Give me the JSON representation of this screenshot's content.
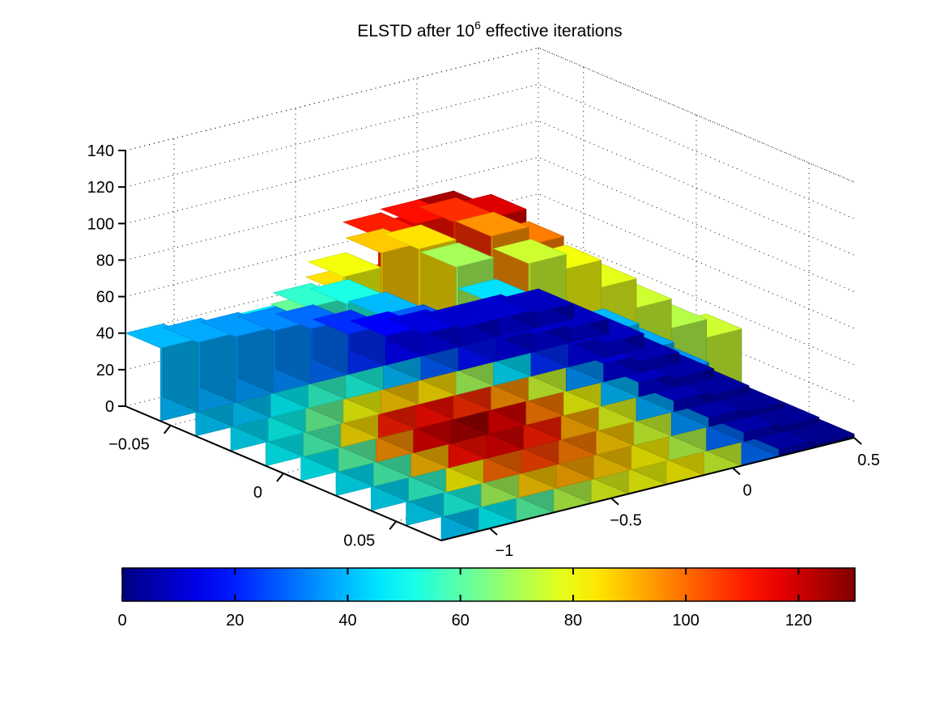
{
  "chart_data": {
    "type": "surface3d",
    "title": {
      "main": "ELSTD after 10",
      "superscript": "6",
      "rest": " effective iterations"
    },
    "z_axis": {
      "ticks": [
        0,
        20,
        40,
        60,
        80,
        100,
        120,
        140
      ],
      "labels": [
        "0",
        "20",
        "40",
        "60",
        "80",
        "100",
        "120",
        "140"
      ],
      "lim": [
        0,
        140
      ]
    },
    "left_axis": {
      "ticks": [
        -0.05,
        0,
        0.05
      ],
      "labels": [
        "−0.05",
        "0",
        "0.05"
      ],
      "lim": [
        -0.07,
        0.07
      ]
    },
    "right_axis": {
      "ticks": [
        -1,
        -0.5,
        0,
        0.5
      ],
      "labels": [
        "−1",
        "−0.5",
        "0",
        "0.5"
      ],
      "lim": [
        -1.2,
        0.5
      ]
    },
    "colormap": "jet",
    "colorbar": {
      "ticks": [
        0,
        20,
        40,
        60,
        80,
        100,
        120
      ],
      "labels": [
        "0",
        "20",
        "40",
        "60",
        "80",
        "100",
        "120"
      ],
      "lim": [
        0,
        130
      ]
    },
    "grid": true,
    "surface_z": [
      [
        40,
        38,
        36,
        34,
        30,
        22,
        16,
        12,
        10,
        10,
        8
      ],
      [
        42,
        42,
        48,
        55,
        52,
        40,
        28,
        18,
        12,
        10,
        8
      ],
      [
        45,
        50,
        62,
        80,
        88,
        85,
        70,
        45,
        22,
        12,
        8
      ],
      [
        48,
        58,
        85,
        110,
        112,
        108,
        95,
        75,
        35,
        10,
        6
      ],
      [
        48,
        60,
        95,
        118,
        125,
        118,
        98,
        80,
        40,
        8,
        5
      ],
      [
        46,
        58,
        90,
        112,
        118,
        110,
        92,
        78,
        38,
        6,
        4
      ],
      [
        45,
        55,
        82,
        100,
        105,
        98,
        88,
        75,
        35,
        5,
        3
      ],
      [
        44,
        52,
        70,
        88,
        92,
        88,
        82,
        72,
        30,
        5,
        3
      ],
      [
        42,
        48,
        60,
        72,
        78,
        80,
        82,
        75,
        30,
        4,
        2
      ]
    ]
  }
}
